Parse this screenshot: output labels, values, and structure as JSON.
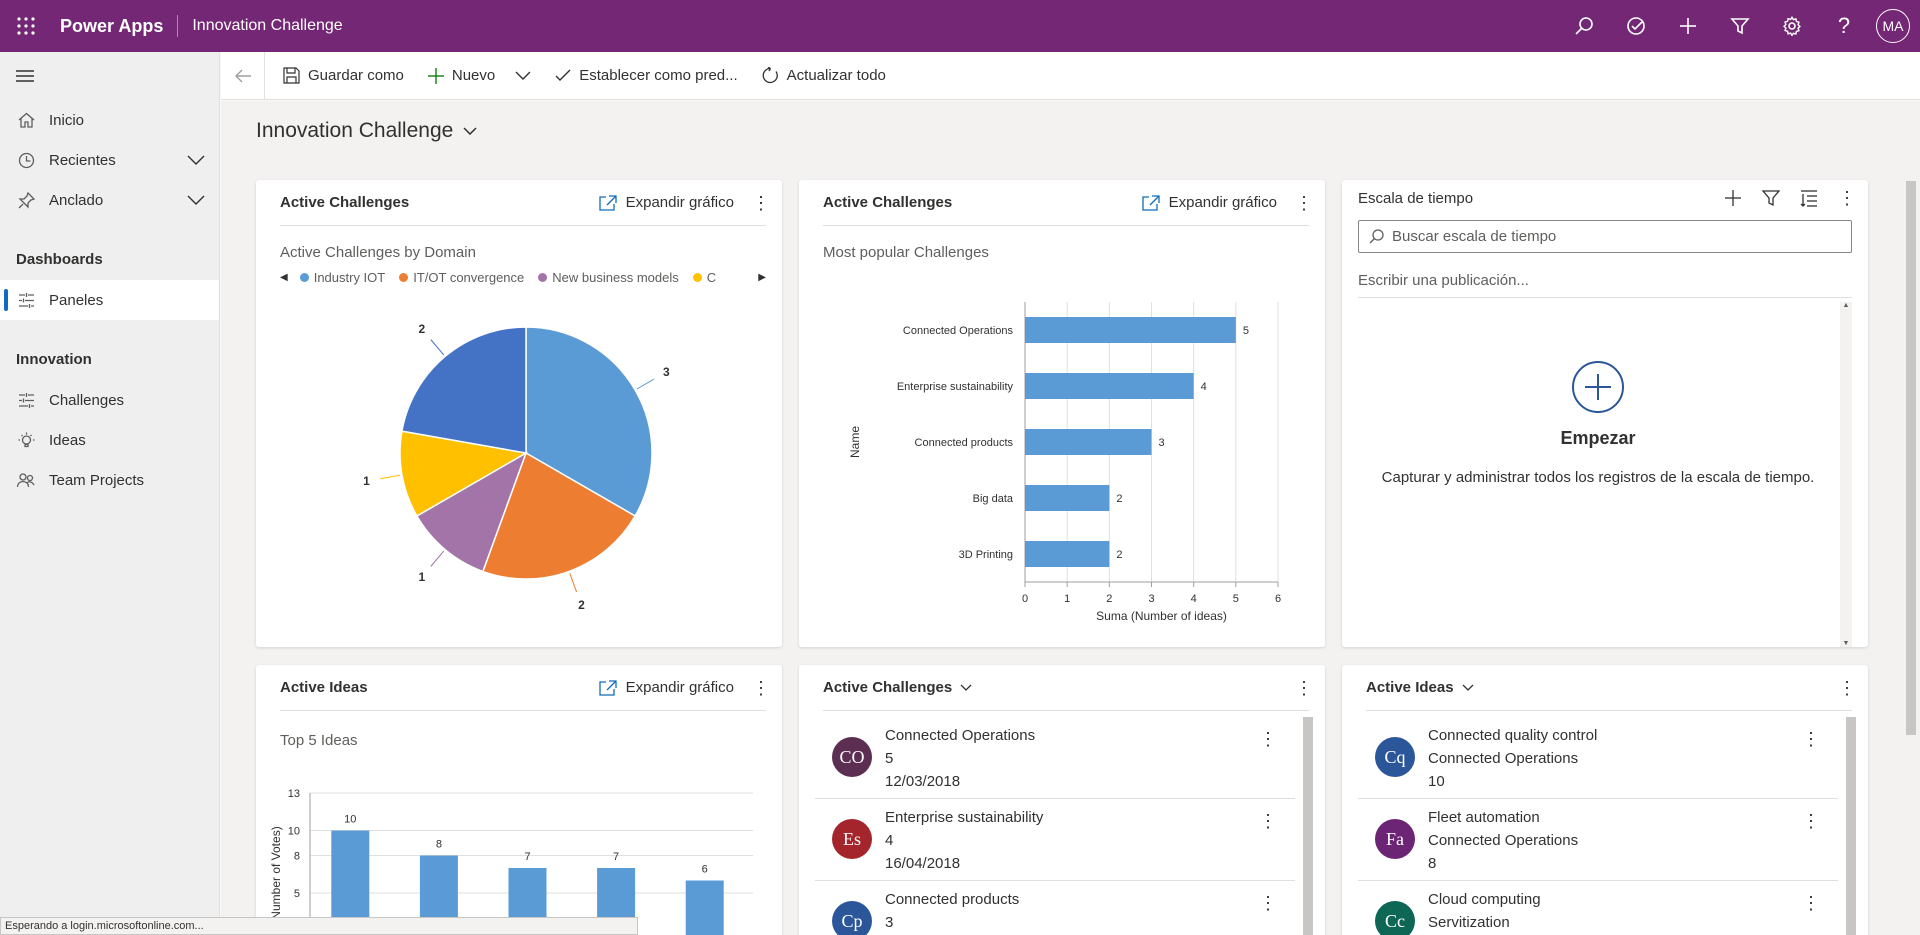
{
  "app": {
    "brand": "Power Apps",
    "environment": "Innovation Challenge",
    "user_initials": "MA"
  },
  "topbar_icons": [
    "search-icon",
    "target-icon",
    "plus-icon",
    "filter-icon",
    "settings-icon",
    "help-icon"
  ],
  "sidebar": {
    "items": [
      {
        "label": "Inicio",
        "icon": "home-icon"
      },
      {
        "label": "Recientes",
        "icon": "clock-icon"
      },
      {
        "label": "Anclado",
        "icon": "pin-icon"
      }
    ],
    "group_dashboards": "Dashboards",
    "dashboards": [
      {
        "label": "Paneles",
        "icon": "dashboard-icon"
      }
    ],
    "group_innovation": "Innovation",
    "innovation": [
      {
        "label": "Challenges",
        "icon": "challenges-icon"
      },
      {
        "label": "Ideas",
        "icon": "lightbulb-icon"
      },
      {
        "label": "Team Projects",
        "icon": "people-icon"
      }
    ]
  },
  "toolbar": {
    "save_as": "Guardar como",
    "new": "Nuevo",
    "set_default": "Establecer como pred...",
    "refresh_all": "Actualizar todo"
  },
  "dashboard_title": "Innovation Challenge",
  "expand_chart": "Expandir gráfico",
  "card_pie": {
    "title": "Active Challenges",
    "subtitle": "Active Challenges by Domain",
    "legend": [
      {
        "name": "Industry IOT",
        "color": "#5b9bd5"
      },
      {
        "name": "IT/OT convergence",
        "color": "#ed7d31"
      },
      {
        "name": "New business models",
        "color": "#a374a8"
      },
      {
        "name": "C",
        "color": "#ffc000"
      }
    ]
  },
  "card_bar": {
    "title": "Active Challenges",
    "subtitle": "Most popular Challenges"
  },
  "card_timeline": {
    "title": "Escala de tiempo",
    "search_placeholder": "Buscar escala de tiempo",
    "post_placeholder": "Escribir una publicación...",
    "empty_title": "Empezar",
    "empty_text": "Capturar y administrar todos los registros de la escala de tiempo."
  },
  "card_ideas_chart": {
    "title": "Active Ideas",
    "subtitle": "Top 5 Ideas"
  },
  "card_challenges_list": {
    "title": "Active Challenges",
    "rows": [
      {
        "initials": "CO",
        "color": "#5c2e52",
        "name": "Connected Operations",
        "count": "5",
        "date": "12/03/2018"
      },
      {
        "initials": "Es",
        "color": "#a4262c",
        "name": "Enterprise sustainability",
        "count": "4",
        "date": "16/04/2018"
      },
      {
        "initials": "Cp",
        "color": "#2b579a",
        "name": "Connected products",
        "count": "3",
        "date": ""
      }
    ]
  },
  "card_ideas_list": {
    "title": "Active Ideas",
    "rows": [
      {
        "initials": "Cq",
        "color": "#2b579a",
        "name": "Connected quality control",
        "challenge": "Connected Operations",
        "votes": "10"
      },
      {
        "initials": "Fa",
        "color": "#6b2574",
        "name": "Fleet automation",
        "challenge": "Connected Operations",
        "votes": "8"
      },
      {
        "initials": "Cc",
        "color": "#0e6655",
        "name": "Cloud computing",
        "challenge": "Servitization",
        "votes": ""
      }
    ]
  },
  "status_bar": "Esperando a login.microsoftonline.com...",
  "chart_data": [
    {
      "type": "pie",
      "title": "Active Challenges by Domain",
      "categories": [
        "Industry IOT",
        "IT/OT convergence",
        "New business models",
        "C",
        ""
      ],
      "values": [
        3,
        2,
        1,
        1,
        2
      ],
      "colors": [
        "#5b9bd5",
        "#ed7d31",
        "#a374a8",
        "#ffc000",
        "#4472c4"
      ],
      "legend": "top"
    },
    {
      "type": "bar",
      "orientation": "horizontal",
      "title": "Most popular Challenges",
      "categories": [
        "Connected Operations",
        "Enterprise sustainability",
        "Connected products",
        "Big data",
        "3D Printing"
      ],
      "values": [
        5,
        4,
        3,
        2,
        2
      ],
      "xlabel": "Suma (Number of ideas)",
      "ylabel": "Name",
      "xlim": [
        0,
        6
      ],
      "xticks": [
        "0",
        "1",
        "2",
        "3",
        "4",
        "5",
        "6"
      ],
      "color": "#5b9bd5",
      "grid": true
    },
    {
      "type": "bar",
      "title": "Top 5 Ideas",
      "values": [
        10,
        8,
        7,
        7,
        6
      ],
      "ylabel": "ma (Number of Votes)",
      "ylim": [
        0,
        13
      ],
      "yticks": [
        "5",
        "8",
        "10",
        "13"
      ],
      "color": "#5b9bd5",
      "grid": true
    }
  ]
}
